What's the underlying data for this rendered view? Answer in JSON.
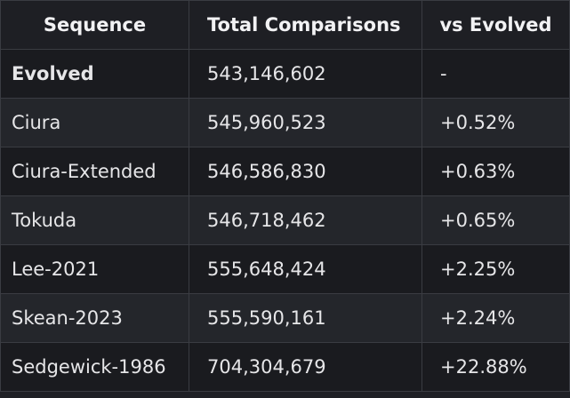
{
  "table": {
    "headers": [
      "Sequence",
      "Total Comparisons",
      "vs Evolved"
    ],
    "rows": [
      {
        "sequence": "Evolved",
        "total": "543,146,602",
        "vs": "-",
        "bold": true
      },
      {
        "sequence": "Ciura",
        "total": "545,960,523",
        "vs": "+0.52%"
      },
      {
        "sequence": "Ciura-Extended",
        "total": "546,586,830",
        "vs": "+0.63%"
      },
      {
        "sequence": "Tokuda",
        "total": "546,718,462",
        "vs": "+0.65%"
      },
      {
        "sequence": "Lee-2021",
        "total": "555,648,424",
        "vs": "+2.25%"
      },
      {
        "sequence": "Skean-2023",
        "total": "555,590,161",
        "vs": "+2.24%"
      },
      {
        "sequence": "Sedgewick-1986",
        "total": "704,304,679",
        "vs": "+22.88%"
      }
    ]
  }
}
